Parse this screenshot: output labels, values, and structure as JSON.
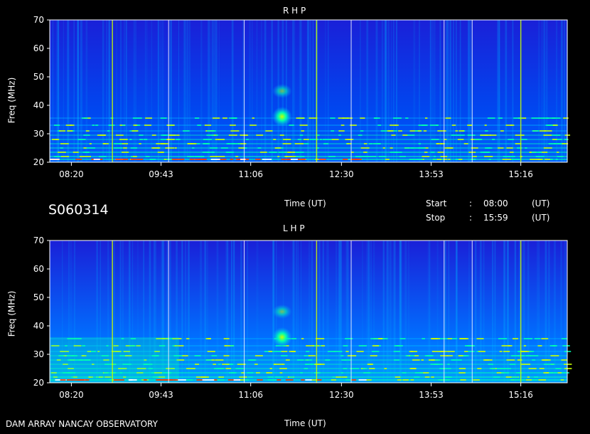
{
  "panels": [
    {
      "title": "R H P",
      "ylabel": "Freq (MHz)",
      "xlabel": "Time (UT)",
      "yticks": [
        20,
        30,
        40,
        50,
        60,
        70
      ],
      "xticks": [
        "08:20",
        "09:43",
        "11:06",
        "12:30",
        "13:53",
        "15:16"
      ]
    },
    {
      "title": "L H P",
      "ylabel": "Freq (MHz)",
      "xlabel": "Time (UT)",
      "yticks": [
        20,
        30,
        40,
        50,
        60,
        70
      ],
      "xticks": [
        "08:20",
        "09:43",
        "11:06",
        "12:30",
        "13:53",
        "15:16"
      ]
    }
  ],
  "chart_data": {
    "type": "heatmap",
    "xlabel": "Time (UT)",
    "ylabel": "Freq (MHz)",
    "ylim": [
      20,
      70
    ],
    "xlim": [
      "08:00",
      "15:59"
    ],
    "colormap": [
      "#1a00c8",
      "#0050ff",
      "#00b4ff",
      "#00ffb0",
      "#c8ff00",
      "#ff3c00",
      "#ffffff"
    ],
    "panels": [
      "R H P",
      "L H P"
    ],
    "vertical_markers": [
      {
        "time": "08:58",
        "color": "#c8ff00"
      },
      {
        "time": "09:50",
        "color": "#ffffff"
      },
      {
        "time": "11:00",
        "color": "#ffffff"
      },
      {
        "time": "12:07",
        "color": "#c8ff00"
      },
      {
        "time": "12:39",
        "color": "#ffffff"
      },
      {
        "time": "14:05",
        "color": "#ffffff"
      },
      {
        "time": "14:31",
        "color": "#ffffff"
      },
      {
        "time": "15:16",
        "color": "#c8ff00"
      }
    ],
    "bursts": [
      {
        "time": "11:35",
        "freq": 36
      },
      {
        "time": "11:35",
        "freq": 45
      }
    ]
  },
  "header": {
    "session_id": "S060314",
    "start_label": "Start",
    "stop_label": "Stop",
    "colon": ":",
    "start_time": "08:00",
    "stop_time": "15:59",
    "unit": "(UT)"
  },
  "footer": {
    "observatory": "DAM ARRAY  NANCAY OBSERVATORY"
  }
}
